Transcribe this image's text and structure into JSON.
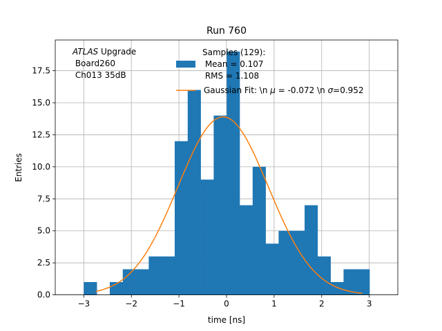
{
  "chart_data": {
    "type": "bar",
    "title": "Run 760",
    "xlabel": "time [ns]",
    "ylabel": "Entries",
    "xlim": [
      -3.6,
      3.6
    ],
    "ylim": [
      0,
      19.9
    ],
    "grid": true,
    "x_ticks": [
      -3,
      -2,
      -1,
      0,
      1,
      2,
      3
    ],
    "x_tick_labels": [
      "−3",
      "−2",
      "−1",
      "0",
      "1",
      "2",
      "3"
    ],
    "y_ticks": [
      0,
      2.5,
      5,
      7.5,
      10,
      12.5,
      15,
      17.5
    ],
    "y_tick_labels": [
      "0.0",
      "2.5",
      "5.0",
      "7.5",
      "10.0",
      "12.5",
      "15.0",
      "17.5"
    ],
    "histogram": {
      "bin_edges": [
        -3.0,
        -2.727,
        -2.454,
        -2.181,
        -1.908,
        -1.635,
        -1.362,
        -1.089,
        -0.816,
        -0.543,
        -0.27,
        0.003,
        0.276,
        0.549,
        0.822,
        1.095,
        1.368,
        1.641,
        1.914,
        2.187,
        2.46,
        2.733,
        3.006
      ],
      "counts": [
        1,
        0,
        1,
        2,
        2,
        3,
        3,
        12,
        16,
        9,
        14,
        19,
        7,
        10,
        4,
        5,
        5,
        7,
        3,
        1,
        2,
        2
      ],
      "color": "#1f77b4"
    },
    "gaussian_fit": {
      "mu": -0.072,
      "sigma": 0.952,
      "amplitude": 13.9,
      "x_range": [
        -2.75,
        2.85
      ],
      "color": "#ff7f0e"
    },
    "annotation": {
      "italic": "ATLAS",
      "rest": " Upgrade",
      "line2": " Board260",
      "line3": " Ch013 35dB"
    },
    "legend": {
      "position": "top-right",
      "hist_label_lines": [
        "Samples (129):",
        " Mean = 0.107",
        " RMS = 1.108"
      ],
      "fit_label_parts": [
        "Gaussian Fit: \\n ",
        "μ",
        " = -0.072 \\n ",
        "σ",
        "=0.952"
      ]
    }
  }
}
